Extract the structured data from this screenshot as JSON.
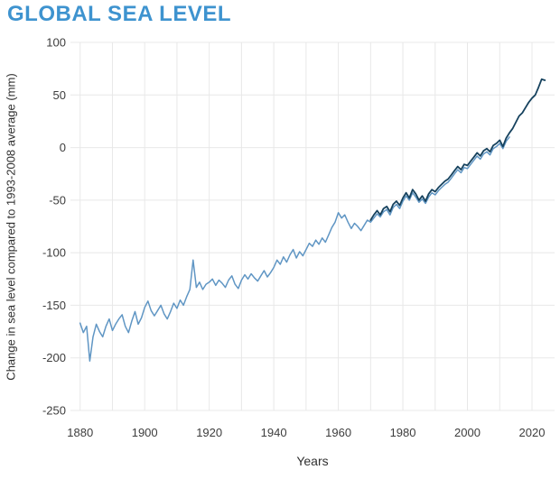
{
  "page": {
    "title": "GLOBAL SEA LEVEL"
  },
  "chart_data": {
    "type": "line",
    "title": "GLOBAL SEA LEVEL",
    "xlabel": "Years",
    "ylabel": "Change in sea level compared to 1993-2008 average (mm)",
    "xlim": [
      1877,
      2027
    ],
    "ylim": [
      -250,
      100
    ],
    "x_tick_labels": [
      1880,
      1900,
      1920,
      1940,
      1960,
      1980,
      2000,
      2020
    ],
    "x_gridlines": [
      1880,
      1890,
      1900,
      1910,
      1920,
      1930,
      1940,
      1950,
      1960,
      1970,
      1980,
      1990,
      2000,
      2010,
      2020
    ],
    "y_ticks": [
      100,
      50,
      0,
      -50,
      -100,
      -150,
      -200,
      -250
    ],
    "grid": true,
    "legend_position": "none",
    "colors": {
      "title": "#3e93cf",
      "tide_gauge_line": "#6096c4",
      "recent_line": "#16425e",
      "gridline": "#e8e8e8",
      "tick_text": "#3d3d3d"
    },
    "series": [
      {
        "name": "tide-gauge-reconstruction",
        "color_key": "tide_gauge_line",
        "stroke_width": 1.5,
        "start_year": 1970,
        "start_year_full": 1880,
        "values": [
          -167,
          -176,
          -170,
          -203,
          -180,
          -168,
          -175,
          -180,
          -170,
          -163,
          -174,
          -168,
          -163,
          -159,
          -170,
          -176,
          -165,
          -156,
          -168,
          -162,
          -152,
          -146,
          -155,
          -160,
          -155,
          -150,
          -158,
          -163,
          -156,
          -148,
          -153,
          -145,
          -150,
          -142,
          -135,
          -107,
          -133,
          -128,
          -135,
          -130,
          -128,
          -125,
          -131,
          -126,
          -129,
          -133,
          -126,
          -122,
          -130,
          -134,
          -126,
          -121,
          -125,
          -120,
          -124,
          -127,
          -122,
          -117,
          -123,
          -119,
          -114,
          -107,
          -111,
          -104,
          -109,
          -102,
          -97,
          -105,
          -99,
          -103,
          -97,
          -91,
          -94,
          -88,
          -92,
          -86,
          -90,
          -83,
          -76,
          -71,
          -62,
          -67,
          -64,
          -71,
          -77,
          -72,
          -75,
          -79,
          -74,
          -69,
          -71,
          -67,
          -63,
          -66,
          -61,
          -59,
          -64,
          -57,
          -54,
          -58,
          -51,
          -46,
          -50,
          -43,
          -47,
          -52,
          -49,
          -53,
          -47,
          -43,
          -45,
          -41,
          -38,
          -35,
          -33,
          -29,
          -25,
          -21,
          -24,
          -19,
          -20,
          -16,
          -12,
          -8,
          -11,
          -6,
          -4,
          -7,
          -1,
          1,
          4,
          -1,
          6,
          10
        ]
      },
      {
        "name": "recent-observations",
        "color_key": "recent_line",
        "stroke_width": 1.8,
        "start_year": 1970,
        "start_year_full": 1970,
        "values": [
          -69,
          -64,
          -60,
          -64,
          -58,
          -56,
          -61,
          -54,
          -51,
          -55,
          -48,
          -43,
          -48,
          -40,
          -44,
          -50,
          -46,
          -51,
          -44,
          -40,
          -42,
          -38,
          -35,
          -32,
          -30,
          -26,
          -22,
          -18,
          -21,
          -16,
          -17,
          -13,
          -9,
          -5,
          -8,
          -3,
          -1,
          -4,
          2,
          4,
          7,
          1,
          9,
          14,
          18,
          24,
          30,
          33,
          38,
          43,
          47,
          50,
          57,
          65,
          64
        ]
      }
    ]
  }
}
